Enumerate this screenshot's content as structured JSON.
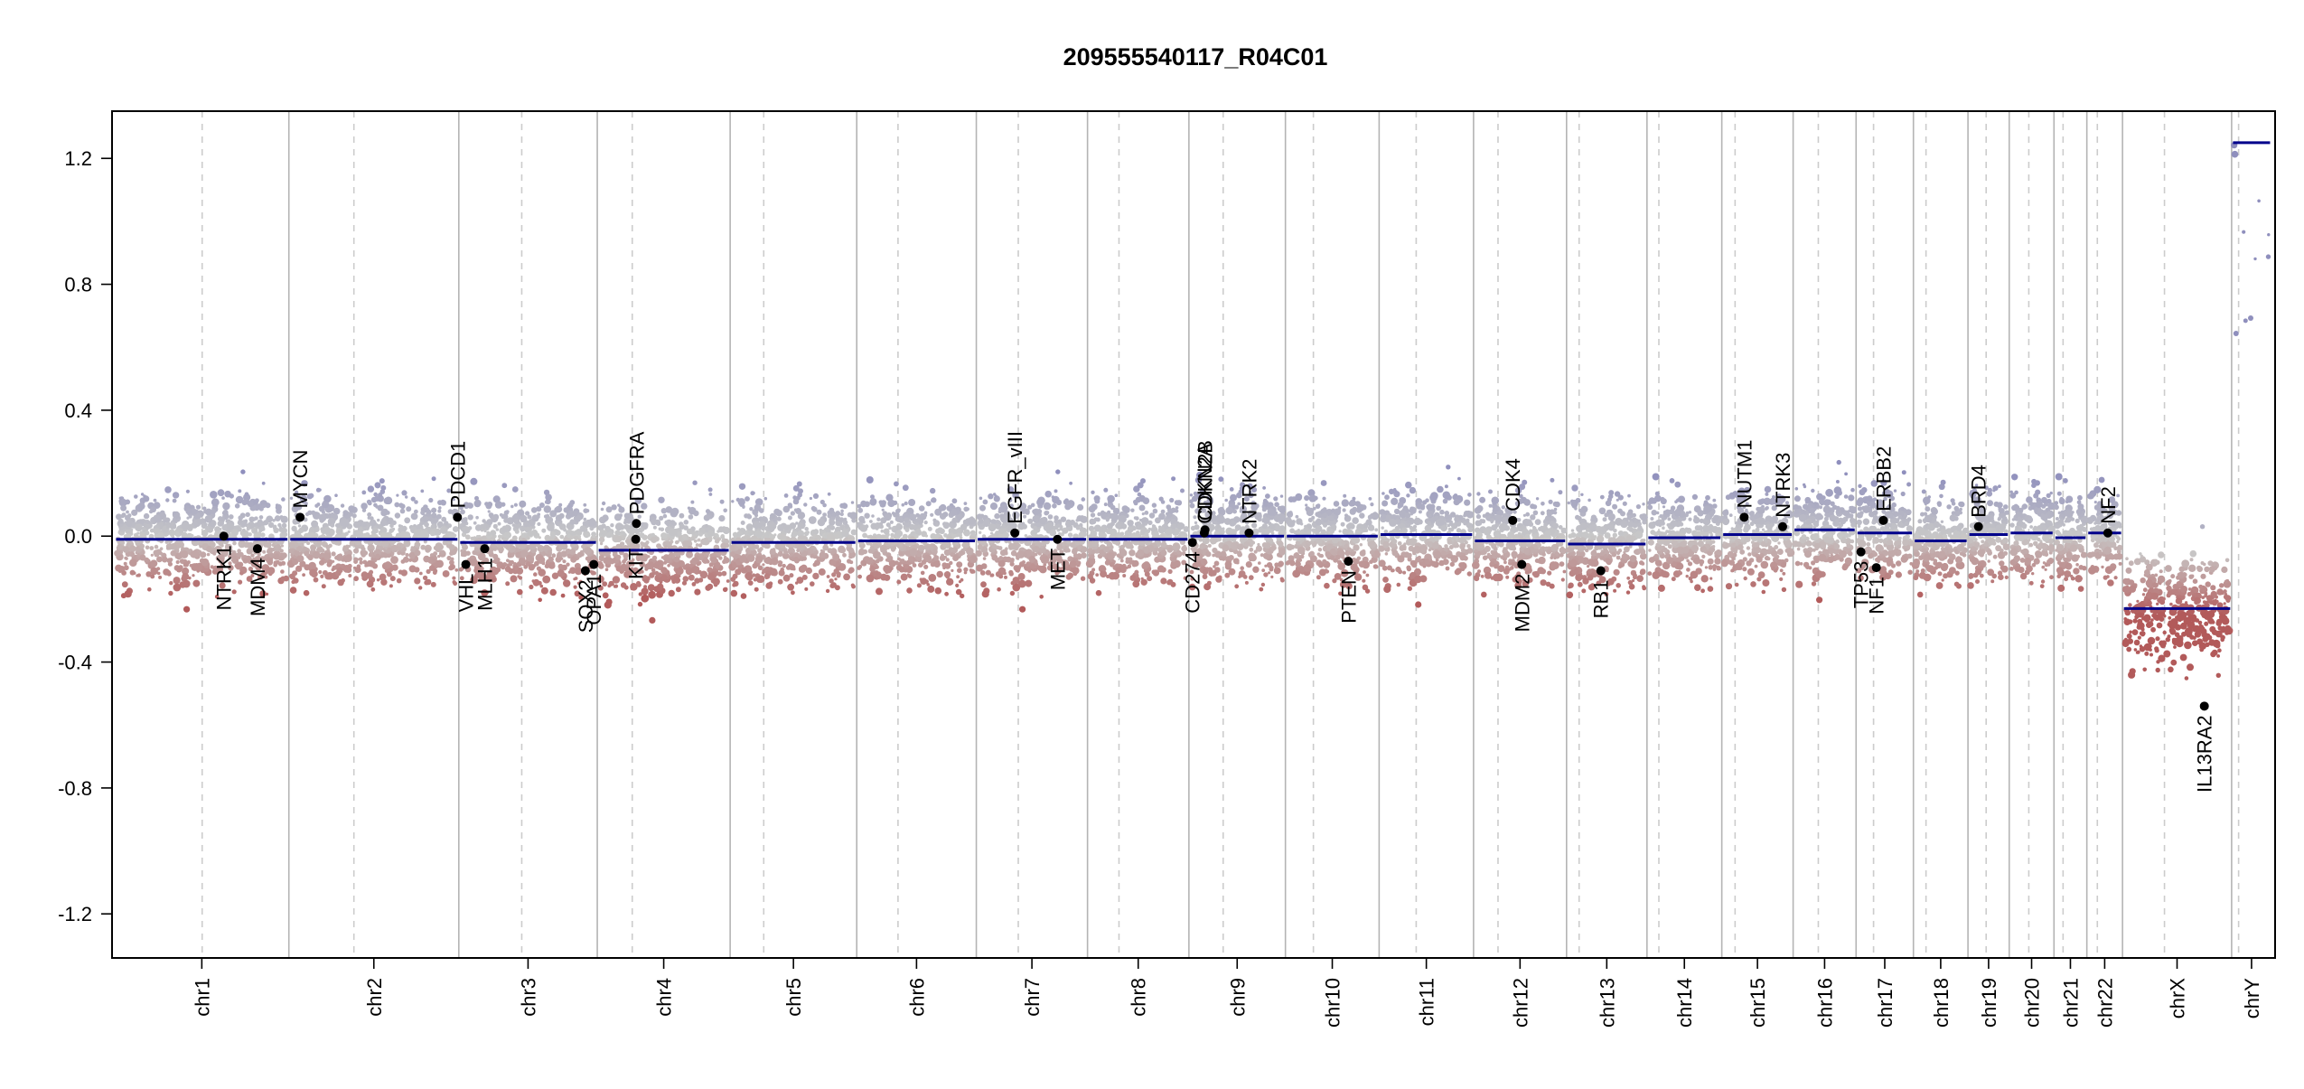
{
  "chart_data": {
    "type": "scatter",
    "title": "209555540117_R04C01",
    "xlabel": "",
    "ylabel": "",
    "ylim": [
      -1.34,
      1.35
    ],
    "yticks": [
      -1.2,
      -0.8,
      -0.4,
      0.0,
      0.4,
      0.8,
      1.2
    ],
    "ytick_labels": [
      "-1.2",
      "-0.8",
      "-0.4",
      "0.0",
      "0.4",
      "0.8",
      "1.2"
    ],
    "grid": false,
    "colors": {
      "high": "#8f8fbd",
      "neutral": "#c8c8c8",
      "low": "#b25a5a",
      "segment": "#00008b",
      "boundary": "#b4b4b4",
      "centromere": "#cccccc",
      "gene_point": "#000000"
    },
    "chromosomes": [
      {
        "name": "chr1",
        "start": 0,
        "end": 249,
        "centromere": 125,
        "mean": -0.01
      },
      {
        "name": "chr2",
        "start": 249,
        "end": 492,
        "centromere": 342,
        "mean": -0.01
      },
      {
        "name": "chr3",
        "start": 492,
        "end": 690,
        "centromere": 582,
        "mean": -0.02
      },
      {
        "name": "chr4",
        "start": 690,
        "end": 880,
        "centromere": 740,
        "mean": -0.045
      },
      {
        "name": "chr5",
        "start": 880,
        "end": 1061,
        "centromere": 928,
        "mean": -0.02
      },
      {
        "name": "chr6",
        "start": 1061,
        "end": 1232,
        "centromere": 1120,
        "mean": -0.015
      },
      {
        "name": "chr7",
        "start": 1232,
        "end": 1391,
        "centromere": 1292,
        "mean": -0.01
      },
      {
        "name": "chr8",
        "start": 1391,
        "end": 1536,
        "centromere": 1436,
        "mean": -0.01
      },
      {
        "name": "chr9",
        "start": 1536,
        "end": 1674,
        "centromere": 1585,
        "mean": 0.0
      },
      {
        "name": "chr10",
        "start": 1674,
        "end": 1808,
        "centromere": 1714,
        "mean": 0.0
      },
      {
        "name": "chr11",
        "start": 1808,
        "end": 1943,
        "centromere": 1861,
        "mean": 0.005
      },
      {
        "name": "chr12",
        "start": 1943,
        "end": 2076,
        "centromere": 1978,
        "mean": -0.015
      },
      {
        "name": "chr13",
        "start": 2076,
        "end": 2191,
        "centromere": 2094,
        "mean": -0.025
      },
      {
        "name": "chr14",
        "start": 2191,
        "end": 2298,
        "centromere": 2208,
        "mean": -0.005
      },
      {
        "name": "chr15",
        "start": 2298,
        "end": 2400,
        "centromere": 2317,
        "mean": 0.005
      },
      {
        "name": "chr16",
        "start": 2400,
        "end": 2490,
        "centromere": 2436,
        "mean": 0.02
      },
      {
        "name": "chr17",
        "start": 2490,
        "end": 2572,
        "centromere": 2515,
        "mean": 0.01
      },
      {
        "name": "chr18",
        "start": 2572,
        "end": 2650,
        "centromere": 2590,
        "mean": -0.015
      },
      {
        "name": "chr19",
        "start": 2650,
        "end": 2709,
        "centromere": 2676,
        "mean": 0.005
      },
      {
        "name": "chr20",
        "start": 2709,
        "end": 2773,
        "centromere": 2737,
        "mean": 0.01
      },
      {
        "name": "chr21",
        "start": 2773,
        "end": 2820,
        "centromere": 2786,
        "mean": -0.005
      },
      {
        "name": "chr22",
        "start": 2820,
        "end": 2871,
        "centromere": 2835,
        "mean": 0.01
      },
      {
        "name": "chrX",
        "start": 2871,
        "end": 3027,
        "centromere": 2931,
        "mean": -0.23
      },
      {
        "name": "chrY",
        "start": 3027,
        "end": 3084,
        "centromere": 3037,
        "mean": 1.25
      }
    ],
    "genome_length": 3084,
    "genes": [
      {
        "name": "NTRK1",
        "pos": 156,
        "value": 0.0,
        "label_side": "below"
      },
      {
        "name": "MDM4",
        "pos": 204,
        "value": -0.04,
        "label_side": "below"
      },
      {
        "name": "MYCN",
        "pos": 265,
        "value": 0.06,
        "label_side": "above"
      },
      {
        "name": "PDCD1",
        "pos": 490,
        "value": 0.06,
        "label_side": "above"
      },
      {
        "name": "VHL",
        "pos": 502,
        "value": -0.09,
        "label_side": "below"
      },
      {
        "name": "MLH1",
        "pos": 529,
        "value": -0.04,
        "label_side": "below"
      },
      {
        "name": "SOX2",
        "pos": 673,
        "value": -0.11,
        "label_side": "below"
      },
      {
        "name": "OPA1",
        "pos": 685,
        "value": -0.09,
        "label_side": "below"
      },
      {
        "name": "KIT",
        "pos": 745,
        "value": -0.01,
        "label_side": "below"
      },
      {
        "name": "PDGFRA",
        "pos": 746,
        "value": 0.04,
        "label_side": "above"
      },
      {
        "name": "EGFR_vIII",
        "pos": 1287,
        "value": 0.01,
        "label_side": "above"
      },
      {
        "name": "MET",
        "pos": 1348,
        "value": -0.01,
        "label_side": "below"
      },
      {
        "name": "CD274",
        "pos": 1541,
        "value": -0.02,
        "label_side": "below"
      },
      {
        "name": "CDKN2A",
        "pos": 1558,
        "value": 0.01,
        "label_side": "above"
      },
      {
        "name": "CDKN2B",
        "pos": 1559,
        "value": 0.02,
        "label_side": "above"
      },
      {
        "name": "NTRK2",
        "pos": 1622,
        "value": 0.01,
        "label_side": "above"
      },
      {
        "name": "PTEN",
        "pos": 1764,
        "value": -0.08,
        "label_side": "below"
      },
      {
        "name": "CDK4",
        "pos": 1999,
        "value": 0.05,
        "label_side": "above"
      },
      {
        "name": "MDM2",
        "pos": 2012,
        "value": -0.09,
        "label_side": "below"
      },
      {
        "name": "RB1",
        "pos": 2125,
        "value": -0.11,
        "label_side": "below"
      },
      {
        "name": "NUTM1",
        "pos": 2330,
        "value": 0.06,
        "label_side": "above"
      },
      {
        "name": "NTRK3",
        "pos": 2385,
        "value": 0.03,
        "label_side": "above"
      },
      {
        "name": "TP53",
        "pos": 2497,
        "value": -0.05,
        "label_side": "below"
      },
      {
        "name": "NF1",
        "pos": 2519,
        "value": -0.1,
        "label_side": "below"
      },
      {
        "name": "ERBB2",
        "pos": 2529,
        "value": 0.05,
        "label_side": "above"
      },
      {
        "name": "BRD4",
        "pos": 2665,
        "value": 0.03,
        "label_side": "above"
      },
      {
        "name": "NF2",
        "pos": 2850,
        "value": 0.01,
        "label_side": "above"
      },
      {
        "name": "IL13RA2",
        "pos": 2988,
        "value": -0.54,
        "label_side": "below"
      }
    ]
  }
}
